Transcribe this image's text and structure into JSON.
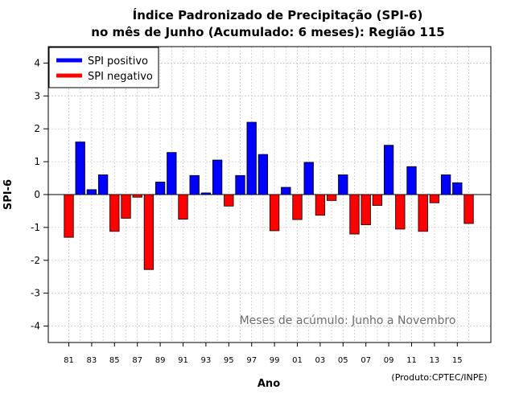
{
  "chart_data": {
    "type": "bar",
    "title_line1": "Índice Padronizado de Precipitação (SPI-6)",
    "title_line2": "no mês de Junho (Acumulado: 6 meses): Região 115",
    "xlabel": "Ano",
    "ylabel": "SPI-6",
    "ylim": [
      -4.5,
      4.5
    ],
    "yticks": [
      -4,
      -3,
      -2,
      -1,
      0,
      1,
      2,
      3,
      4
    ],
    "grid": true,
    "legend_position": "top-left",
    "legend": [
      {
        "label": "SPI positivo",
        "color": "#0000ff"
      },
      {
        "label": "SPI negativo",
        "color": "#ff0000"
      }
    ],
    "annotation": "Meses de acúmulo: Junho a Novembro",
    "source": "(Produto:CPTEC/INPE)",
    "colors": {
      "positive": "#0000ff",
      "negative": "#ff0000"
    },
    "categories": [
      "81",
      "82",
      "83",
      "84",
      "85",
      "86",
      "87",
      "88",
      "89",
      "90",
      "91",
      "92",
      "93",
      "94",
      "95",
      "96",
      "97",
      "98",
      "99",
      "00",
      "01",
      "02",
      "03",
      "04",
      "05",
      "06",
      "07",
      "08",
      "09",
      "10",
      "11",
      "12",
      "13",
      "14",
      "15",
      "16"
    ],
    "tick_labels": [
      "81",
      "83",
      "85",
      "87",
      "89",
      "91",
      "93",
      "95",
      "97",
      "99",
      "01",
      "03",
      "05",
      "07",
      "09",
      "11",
      "13",
      "15"
    ],
    "values": [
      -1.3,
      1.6,
      0.15,
      0.6,
      -1.12,
      -0.72,
      -0.08,
      -2.28,
      0.38,
      1.28,
      -0.75,
      0.58,
      0.05,
      1.05,
      -0.35,
      0.58,
      2.2,
      1.22,
      -1.1,
      0.22,
      -0.76,
      0.98,
      -0.63,
      -0.18,
      0.6,
      -1.2,
      -0.92,
      -0.33,
      1.5,
      -1.05,
      0.85,
      -1.12,
      -0.25,
      0.6,
      0.36,
      -0.88
    ]
  }
}
